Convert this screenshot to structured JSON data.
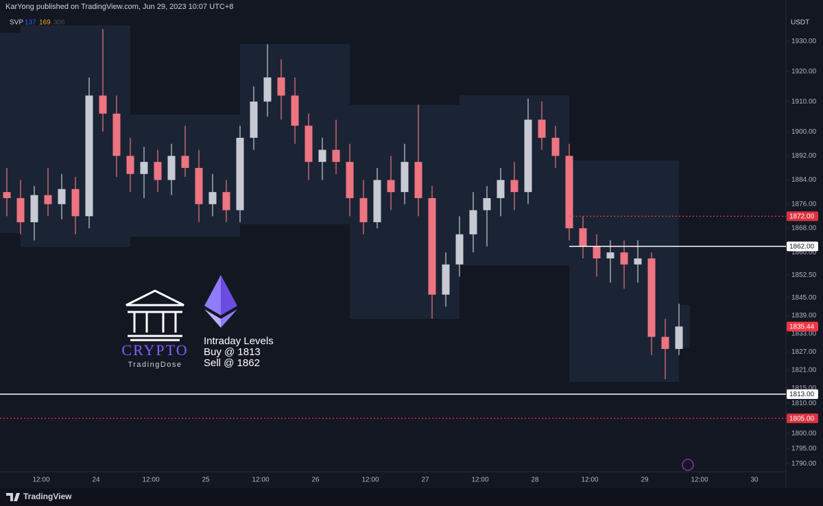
{
  "header": {
    "text": "KarYong published on TradingView.com, Jun 29, 2023 10:07 UTC+8"
  },
  "chart_data": {
    "type": "candlestick",
    "indicator": {
      "name": "SVP",
      "params": [
        "137",
        "169",
        "306"
      ]
    },
    "currency": "USDT",
    "open": [
      1880,
      1878,
      1870,
      1879,
      1876,
      1881,
      1872,
      1912,
      1906,
      1892,
      1886,
      1890,
      1884,
      1892,
      1888,
      1876,
      1880,
      1874,
      1898,
      1910,
      1918,
      1912,
      1902,
      1890,
      1894,
      1890,
      1878,
      1870,
      1884,
      1880,
      1890,
      1878,
      1846,
      1856,
      1866,
      1874,
      1878,
      1884,
      1880,
      1904,
      1898,
      1892,
      1868,
      1862,
      1858,
      1860,
      1856,
      1858,
      1832,
      1828
    ],
    "high": [
      1888,
      1884,
      1882,
      1888,
      1886,
      1885,
      1918,
      1934,
      1912,
      1898,
      1895,
      1894,
      1896,
      1902,
      1894,
      1886,
      1884,
      1902,
      1915,
      1929,
      1924,
      1918,
      1906,
      1898,
      1904,
      1896,
      1884,
      1888,
      1892,
      1896,
      1909,
      1882,
      1860,
      1872,
      1880,
      1882,
      1888,
      1890,
      1911,
      1910,
      1902,
      1896,
      1872,
      1866,
      1864,
      1864,
      1864,
      1860,
      1838,
      1843
    ],
    "low": [
      1872,
      1866,
      1864,
      1872,
      1871,
      1866,
      1868,
      1900,
      1885,
      1880,
      1878,
      1880,
      1879,
      1885,
      1870,
      1872,
      1870,
      1870,
      1894,
      1905,
      1904,
      1896,
      1884,
      1884,
      1886,
      1872,
      1866,
      1868,
      1874,
      1876,
      1872,
      1838,
      1842,
      1852,
      1860,
      1862,
      1872,
      1874,
      1876,
      1894,
      1888,
      1864,
      1858,
      1852,
      1850,
      1848,
      1850,
      1826,
      1818,
      1826
    ],
    "close": [
      1878,
      1870,
      1879,
      1876,
      1881,
      1872,
      1912,
      1906,
      1892,
      1886,
      1890,
      1884,
      1892,
      1888,
      1876,
      1880,
      1874,
      1898,
      1910,
      1918,
      1912,
      1902,
      1890,
      1894,
      1890,
      1878,
      1870,
      1884,
      1880,
      1890,
      1878,
      1846,
      1856,
      1866,
      1874,
      1878,
      1884,
      1880,
      1904,
      1898,
      1892,
      1868,
      1862,
      1858,
      1860,
      1856,
      1858,
      1832,
      1828,
      1835.44
    ],
    "up_color": "#c7cad3",
    "down_color": "#ee7482",
    "xlim": [
      0,
      57.3
    ],
    "xticks": [
      {
        "value": 3,
        "label": "12:00"
      },
      {
        "value": 7,
        "label": "24"
      },
      {
        "value": 11,
        "label": "12:00"
      },
      {
        "value": 15,
        "label": "25"
      },
      {
        "value": 19,
        "label": "12:00"
      },
      {
        "value": 23,
        "label": "26"
      },
      {
        "value": 27,
        "label": "12:00"
      },
      {
        "value": 31,
        "label": "27"
      },
      {
        "value": 35,
        "label": "12:00"
      },
      {
        "value": 39,
        "label": "28"
      },
      {
        "value": 43,
        "label": "12:00"
      },
      {
        "value": 47,
        "label": "29"
      },
      {
        "value": 51,
        "label": "12:00"
      },
      {
        "value": 55,
        "label": "30"
      }
    ],
    "ylim": [
      1787.3,
      1941.4
    ],
    "yticks": [
      {
        "value": 1930,
        "label": "1930.00"
      },
      {
        "value": 1920,
        "label": "1920.00"
      },
      {
        "value": 1910,
        "label": "1910.00"
      },
      {
        "value": 1900,
        "label": "1900.00"
      },
      {
        "value": 1892,
        "label": "1892.00"
      },
      {
        "value": 1884,
        "label": "1884.00"
      },
      {
        "value": 1876,
        "label": "1876.00"
      },
      {
        "value": 1868,
        "label": "1868.00"
      },
      {
        "value": 1860,
        "label": "1860.00"
      },
      {
        "value": 1852.5,
        "label": "1852.50"
      },
      {
        "value": 1845,
        "label": "1845.00"
      },
      {
        "value": 1839,
        "label": "1839.00"
      },
      {
        "value": 1833,
        "label": "1833.00"
      },
      {
        "value": 1827,
        "label": "1827.00"
      },
      {
        "value": 1821,
        "label": "1821.00"
      },
      {
        "value": 1815,
        "label": "1815.00"
      },
      {
        "value": 1810,
        "label": "1810.00"
      },
      {
        "value": 1800,
        "label": "1800.00"
      },
      {
        "value": 1795,
        "label": "1795.00"
      },
      {
        "value": 1790,
        "label": "1790.00"
      }
    ],
    "grid": false,
    "levels": [
      {
        "value": 1872,
        "label": "1872.00",
        "color": "#f23645",
        "style": "dotted",
        "span": "partial"
      },
      {
        "value": 1862,
        "label": "1862.00",
        "color": "#ffffff",
        "style": "solid",
        "span": "partial"
      },
      {
        "value": 1835.44,
        "label": "1835.44",
        "color": "#f23645",
        "style": "tag"
      },
      {
        "value": 1813,
        "label": "1813.00",
        "color": "#ffffff",
        "style": "solid",
        "span": "full"
      },
      {
        "value": 1805,
        "label": "1805.00",
        "color": "#f23645",
        "style": "dotted",
        "span": "full"
      }
    ]
  },
  "overlay": {
    "brand": "CRYPTO",
    "brand_sub": "TradingDose",
    "heading": "Intraday Levels",
    "lines": [
      "Buy @ 1813",
      "Sell @ 1862"
    ]
  },
  "footer": {
    "text": "TradingView"
  }
}
